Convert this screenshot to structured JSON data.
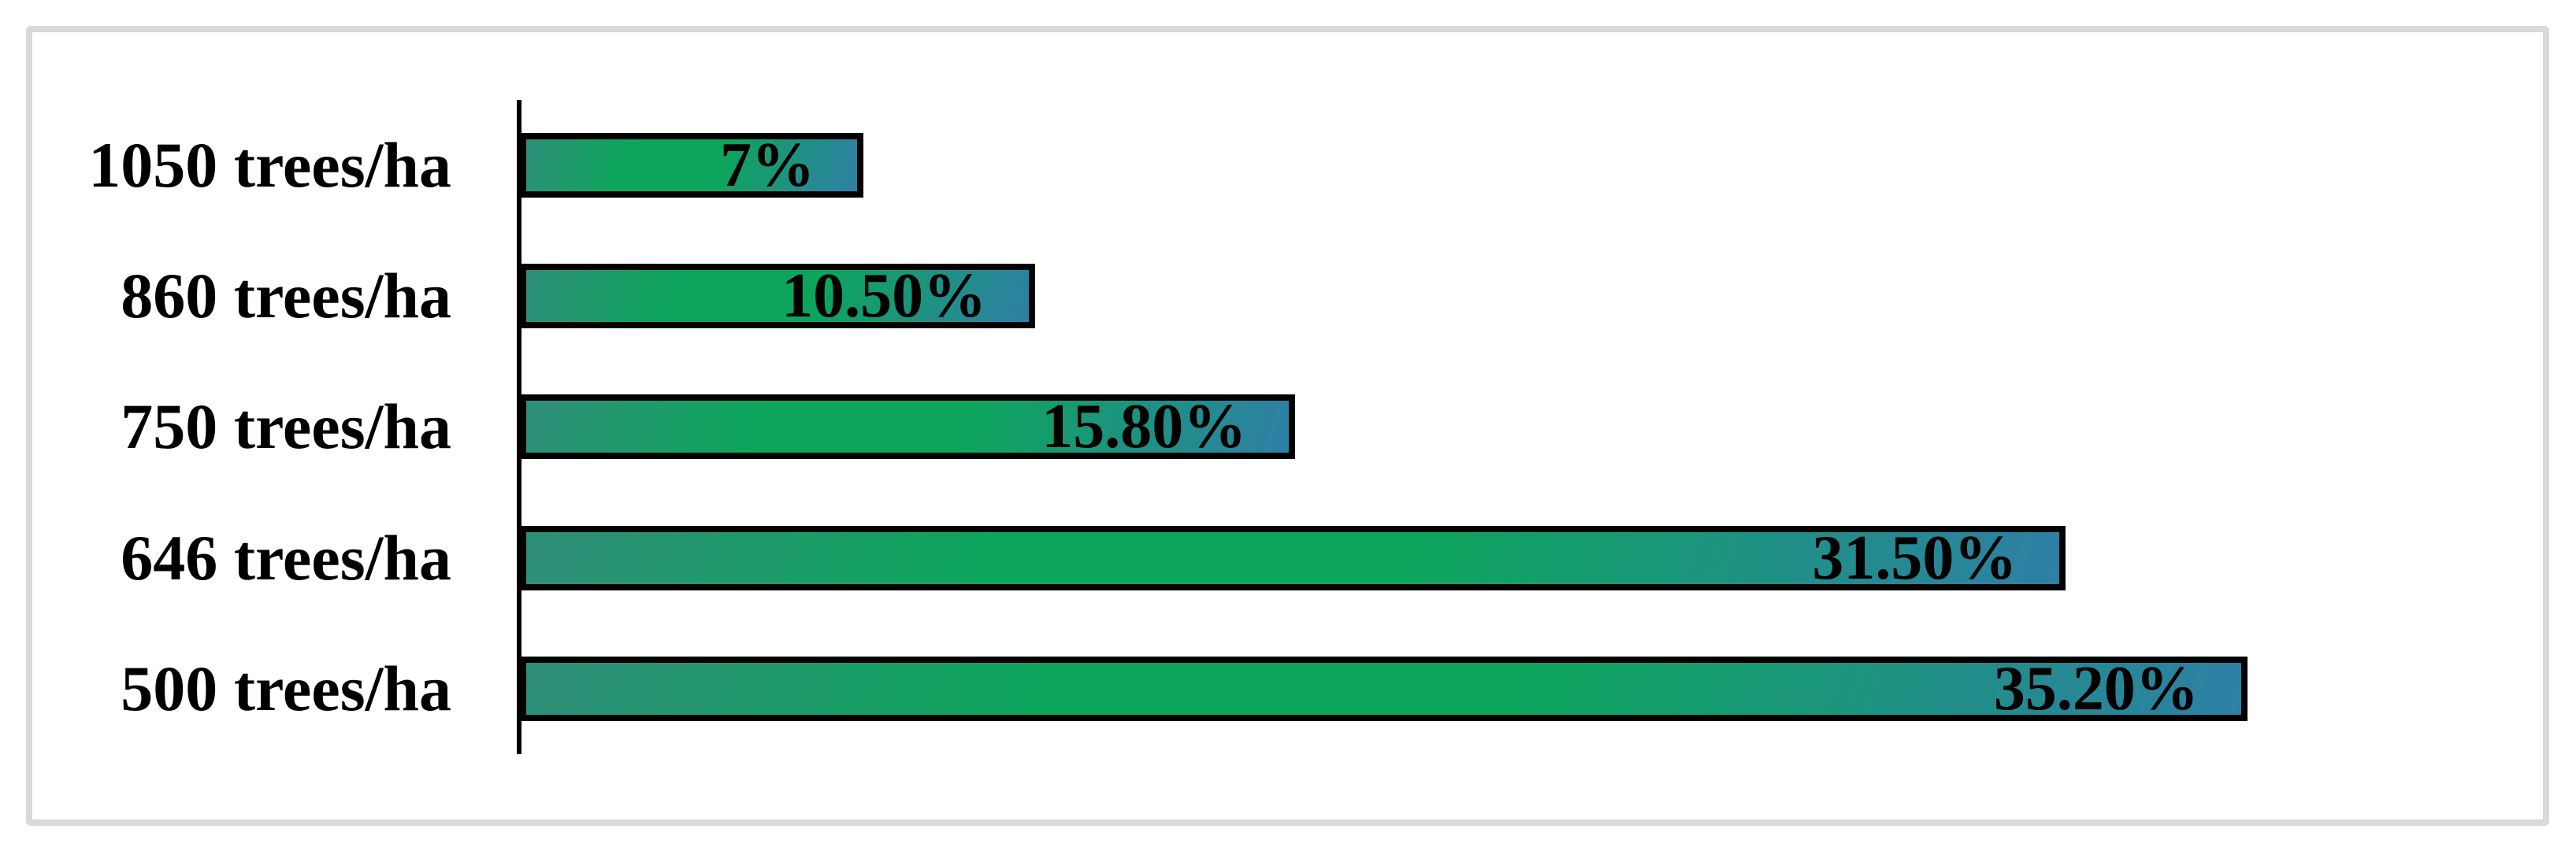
{
  "chart_data": {
    "type": "bar",
    "orientation": "horizontal",
    "title": "",
    "xlabel": "",
    "ylabel": "",
    "categories": [
      "1050 trees/ha",
      "860 trees/ha",
      "750 trees/ha",
      "646 trees/ha",
      "500 trees/ha"
    ],
    "values": [
      7,
      10.5,
      15.8,
      31.5,
      35.2
    ],
    "value_labels": [
      "7%",
      "10.50%",
      "15.80%",
      "31.50%",
      "35.20%"
    ],
    "xlim": [
      0,
      41.35
    ],
    "grid": false,
    "legend": false,
    "value_labels_position": "inside-end",
    "colors": {
      "bar_gradient_left": "#2f8e79",
      "bar_gradient_mid": "#0da55c",
      "bar_gradient_right": "#2e7fa6",
      "bar_border": "#000000",
      "axis_line": "#000000",
      "text": "#000000",
      "frame_border": "#d9d9d9",
      "background": "#ffffff"
    }
  }
}
